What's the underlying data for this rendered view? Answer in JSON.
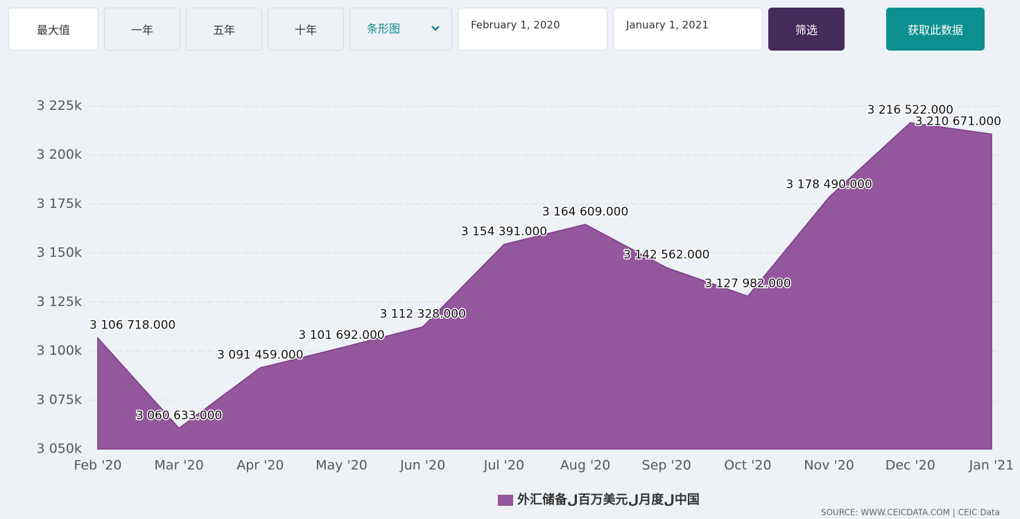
{
  "toolbar": {
    "buttons": [
      "最大值",
      "一年",
      "五年",
      "十年"
    ],
    "chart_select": "条形图",
    "date_from": "February 1, 2020",
    "date_to": "January 1, 2021",
    "filter": "筛选",
    "get_data": "获取此数据"
  },
  "chart_data": {
    "type": "area",
    "categories": [
      "Feb '20",
      "Mar '20",
      "Apr '20",
      "May '20",
      "Jun '20",
      "Jul '20",
      "Aug '20",
      "Sep '20",
      "Oct '20",
      "Nov '20",
      "Dec '20",
      "Jan '21"
    ],
    "series": [
      {
        "name": "外汇储备ل百万美元ل月度ل中国",
        "color": "#94569c",
        "values": [
          3106718,
          3060633,
          3091459,
          3101692,
          3112328,
          3154391,
          3164609,
          3142562,
          3127982,
          3178490,
          3216522,
          3210671
        ],
        "value_labels": [
          "3 106 718.000",
          "3 060 633.000",
          "3 091 459.000",
          "3 101 692.000",
          "3 112 328.000",
          "3 154 391.000",
          "3 164 609.000",
          "3 142 562.000",
          "3 127 982.000",
          "3 178 490.000",
          "3 216 522.000",
          "3 210 671.000"
        ]
      }
    ],
    "ylim": [
      3050000,
      3225000
    ],
    "yticks": [
      {
        "value": 3050000,
        "label": "3 050k"
      },
      {
        "value": 3075000,
        "label": "3 075k"
      },
      {
        "value": 3100000,
        "label": "3 100k"
      },
      {
        "value": 3125000,
        "label": "3 125k"
      },
      {
        "value": 3150000,
        "label": "3 150k"
      },
      {
        "value": 3175000,
        "label": "3 175k"
      },
      {
        "value": 3200000,
        "label": "3 200k"
      },
      {
        "value": 3225000,
        "label": "3 225k"
      }
    ],
    "grid": true,
    "source": "SOURCE: WWW.CEICDATA.COM | CEIC Data"
  }
}
